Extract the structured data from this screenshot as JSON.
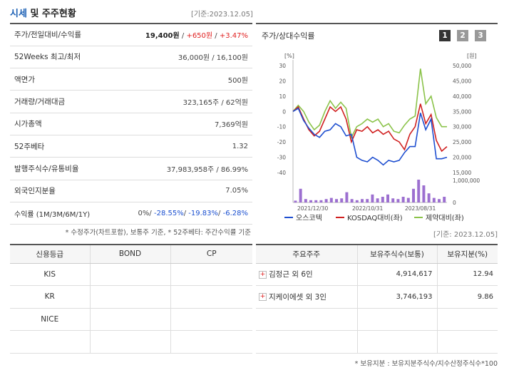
{
  "header": {
    "title_highlight": "시세",
    "title_rest": " 및 주주현황",
    "base_date": "[기준:2023.12.05]"
  },
  "quote": {
    "rows": [
      {
        "key": "주가/전일대비/수익률"
      },
      {
        "key": "52Weeks 최고/최저",
        "value": "36,000원 / 16,100원"
      },
      {
        "key": "액면가",
        "value": "500원"
      },
      {
        "key": "거래량/거래대금",
        "value": "323,165주 / 62억원"
      },
      {
        "key": "시가총액",
        "value": "7,369억원"
      },
      {
        "key": "52주베타",
        "value": "1.32"
      },
      {
        "key": "발행주식수/유통비율",
        "value": "37,983,958주 / 86.99%"
      },
      {
        "key": "외국인지분율",
        "value": "7.05%"
      },
      {
        "key": "수익률 (1M/3M/6M/1Y)"
      }
    ],
    "price": "19,400원",
    "change": "+650원",
    "change_pct": "+3.47%",
    "sep": " / ",
    "returns": {
      "r1": "0%",
      "r2": "-28.55%",
      "r3": "-19.83%",
      "r4": "-6.28%",
      "sep": "/ "
    },
    "note": "* 수정주가(차트포함), 보통주 기준, * 52주베타: 주간수익률 기준"
  },
  "chart_panel": {
    "title": "주가/상대수익률",
    "buttons": [
      "1",
      "2",
      "3"
    ],
    "button_colors": [
      "#333333",
      "#999999",
      "#999999"
    ]
  },
  "chart_data": {
    "type": "line",
    "y_left": {
      "unit": "[%]",
      "ticks": [
        "30",
        "20",
        "10",
        "0",
        "-10",
        "-20",
        "-30",
        "-40"
      ],
      "range": [
        -40,
        30
      ]
    },
    "y_right": {
      "unit": "[원]",
      "ticks": [
        "50,000",
        "45,000",
        "40,000",
        "35,000",
        "30,000",
        "25,000",
        "20,000",
        "15,000"
      ],
      "range": [
        15000,
        50000
      ]
    },
    "volume_axis": {
      "ticks": [
        "1,000,000",
        "0"
      ],
      "range": [
        0,
        1000000
      ]
    },
    "x_ticks": [
      "2021/12/30",
      "2022/10/31",
      "2023/08/31"
    ],
    "series": [
      {
        "name": "오스코텍",
        "color": "#1f4fd0",
        "values": [
          0,
          2,
          -6,
          -11,
          -15,
          -17,
          -13,
          -12,
          -8,
          -10,
          -16,
          -15,
          -30,
          -32,
          -33,
          -30,
          -32,
          -35,
          -32,
          -33,
          -32,
          -27,
          -23,
          -23,
          -1,
          -12,
          -5,
          -31,
          -31,
          -30
        ]
      },
      {
        "name": "KOSDAQ대비(좌)",
        "color": "#d02020",
        "values": [
          0,
          3,
          -5,
          -12,
          -16,
          -13,
          -5,
          3,
          0,
          3,
          -5,
          -20,
          -12,
          -13,
          -10,
          -14,
          -12,
          -15,
          -13,
          -18,
          -20,
          -25,
          -15,
          -10,
          5,
          -8,
          -2,
          -19,
          -26,
          -23
        ]
      },
      {
        "name": "제약대비(좌)",
        "color": "#8bc34a",
        "values": [
          0,
          4,
          0,
          -7,
          -12,
          -9,
          0,
          7,
          2,
          6,
          2,
          -17,
          -10,
          -8,
          -5,
          -7,
          -5,
          -10,
          -8,
          -13,
          -14,
          -9,
          -5,
          -3,
          28,
          5,
          10,
          -4,
          -10,
          -10
        ]
      },
      {
        "name": "거래량",
        "color": "#9c6fd0",
        "values": [
          80000,
          600000,
          150000,
          100000,
          100000,
          100000,
          150000,
          200000,
          150000,
          180000,
          450000,
          150000,
          100000,
          150000,
          150000,
          350000,
          180000,
          250000,
          350000,
          180000,
          150000,
          250000,
          200000,
          600000,
          1200000,
          750000,
          400000,
          200000,
          150000,
          250000
        ]
      }
    ]
  },
  "credit": {
    "headers": [
      "신용등급",
      "BOND",
      "CP"
    ],
    "rows": [
      [
        "KIS",
        "",
        ""
      ],
      [
        "KR",
        "",
        ""
      ],
      [
        "NICE",
        "",
        ""
      ],
      [
        "",
        "",
        ""
      ]
    ]
  },
  "holders": {
    "base_date": "[기준: 2023.12.05]",
    "headers": [
      "주요주주",
      "보유주식수(보통)",
      "보유지분(%)"
    ],
    "rows": [
      {
        "name": "김정근 외 6인",
        "shares": "4,914,617",
        "pct": "12.94"
      },
      {
        "name": "지케이에셋 외 3인",
        "shares": "3,746,193",
        "pct": "9.86"
      }
    ],
    "note": "* 보유지분 : 보유지분주식수/지수산정주식수*100"
  }
}
